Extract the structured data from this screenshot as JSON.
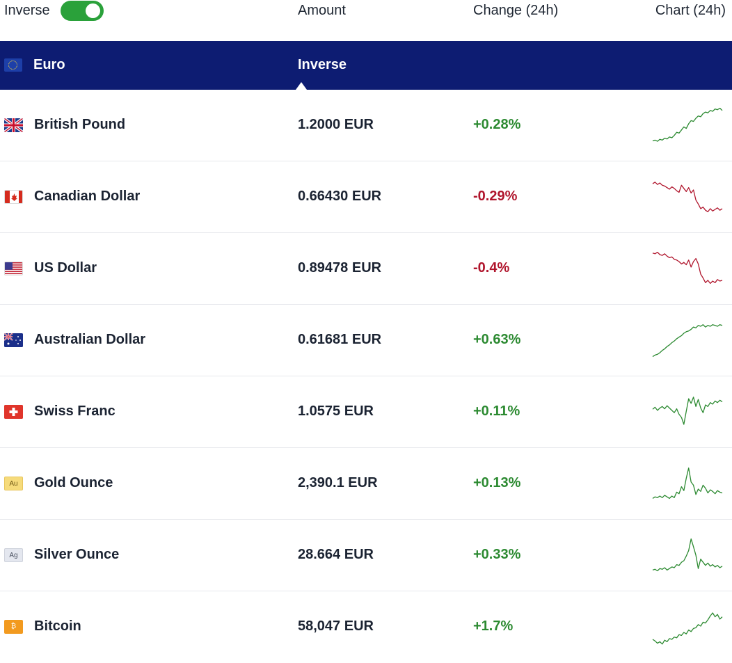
{
  "header": {
    "inverse_label": "Inverse",
    "toggle_on": true,
    "col_amount": "Amount",
    "col_change": "Change (24h)",
    "col_chart": "Chart (24h)"
  },
  "base": {
    "name": "Euro",
    "mode": "Inverse",
    "flag": "eu-flag-icon"
  },
  "colors": {
    "up": "#2c8a31",
    "down": "#b0152c",
    "banner": "#0d1c72",
    "toggle": "#2aa13a"
  },
  "rows": [
    {
      "name": "British Pound",
      "amount": "1.2000 EUR",
      "change": "+0.28%",
      "direction": "up",
      "flag": "gb-flag-icon",
      "flag_text": "",
      "spark": [
        0.08,
        0.1,
        0.07,
        0.12,
        0.1,
        0.15,
        0.13,
        0.18,
        0.16,
        0.22,
        0.3,
        0.28,
        0.36,
        0.44,
        0.4,
        0.52,
        0.6,
        0.58,
        0.66,
        0.72,
        0.7,
        0.78,
        0.82,
        0.8,
        0.86,
        0.84,
        0.9,
        0.88,
        0.92,
        0.86
      ]
    },
    {
      "name": "Canadian Dollar",
      "amount": "0.66430 EUR",
      "change": "-0.29%",
      "direction": "down",
      "flag": "ca-flag-icon",
      "flag_text": "",
      "spark": [
        0.82,
        0.86,
        0.8,
        0.84,
        0.78,
        0.76,
        0.72,
        0.68,
        0.74,
        0.7,
        0.64,
        0.6,
        0.78,
        0.7,
        0.62,
        0.72,
        0.58,
        0.66,
        0.4,
        0.3,
        0.18,
        0.22,
        0.14,
        0.1,
        0.18,
        0.12,
        0.16,
        0.2,
        0.14,
        0.18
      ]
    },
    {
      "name": "US Dollar",
      "amount": "0.89478 EUR",
      "change": "-0.4%",
      "direction": "down",
      "flag": "us-flag-icon",
      "flag_text": "",
      "spark": [
        0.88,
        0.86,
        0.9,
        0.84,
        0.82,
        0.86,
        0.8,
        0.76,
        0.78,
        0.72,
        0.7,
        0.66,
        0.6,
        0.64,
        0.58,
        0.7,
        0.52,
        0.66,
        0.74,
        0.6,
        0.34,
        0.24,
        0.12,
        0.18,
        0.1,
        0.16,
        0.12,
        0.2,
        0.16,
        0.18
      ]
    },
    {
      "name": "Australian Dollar",
      "amount": "0.61681 EUR",
      "change": "+0.63%",
      "direction": "up",
      "flag": "au-flag-icon",
      "flag_text": "",
      "spark": [
        0.06,
        0.1,
        0.12,
        0.16,
        0.22,
        0.26,
        0.32,
        0.36,
        0.42,
        0.46,
        0.52,
        0.56,
        0.6,
        0.66,
        0.7,
        0.72,
        0.76,
        0.82,
        0.8,
        0.86,
        0.84,
        0.88,
        0.82,
        0.86,
        0.84,
        0.88,
        0.86,
        0.84,
        0.88,
        0.86
      ]
    },
    {
      "name": "Swiss Franc",
      "amount": "1.0575 EUR",
      "change": "+0.11%",
      "direction": "up",
      "flag": "ch-flag-icon",
      "flag_text": "",
      "spark": [
        0.55,
        0.6,
        0.52,
        0.58,
        0.62,
        0.56,
        0.64,
        0.58,
        0.52,
        0.46,
        0.56,
        0.42,
        0.34,
        0.16,
        0.5,
        0.82,
        0.7,
        0.86,
        0.62,
        0.8,
        0.58,
        0.46,
        0.66,
        0.62,
        0.72,
        0.68,
        0.76,
        0.72,
        0.78,
        0.74
      ]
    },
    {
      "name": "Gold Ounce",
      "amount": "2,390.1 EUR",
      "change": "+0.13%",
      "direction": "up",
      "flag": "gold-metal-icon",
      "flag_text": "Au",
      "spark": [
        0.1,
        0.14,
        0.12,
        0.16,
        0.12,
        0.18,
        0.14,
        0.1,
        0.16,
        0.12,
        0.26,
        0.22,
        0.4,
        0.3,
        0.62,
        0.88,
        0.52,
        0.44,
        0.2,
        0.34,
        0.28,
        0.44,
        0.36,
        0.24,
        0.32,
        0.28,
        0.22,
        0.3,
        0.26,
        0.24
      ]
    },
    {
      "name": "Silver Ounce",
      "amount": "28.664 EUR",
      "change": "+0.33%",
      "direction": "up",
      "flag": "silver-metal-icon",
      "flag_text": "Ag",
      "spark": [
        0.1,
        0.12,
        0.08,
        0.14,
        0.12,
        0.16,
        0.1,
        0.14,
        0.18,
        0.16,
        0.24,
        0.22,
        0.3,
        0.34,
        0.46,
        0.6,
        0.9,
        0.7,
        0.48,
        0.14,
        0.38,
        0.3,
        0.22,
        0.28,
        0.2,
        0.24,
        0.18,
        0.22,
        0.16,
        0.2
      ]
    },
    {
      "name": "Bitcoin",
      "amount": "58,047 EUR",
      "change": "+1.7%",
      "direction": "up",
      "flag": "bitcoin-icon",
      "flag_text": "₿",
      "spark": [
        0.16,
        0.12,
        0.06,
        0.1,
        0.04,
        0.14,
        0.1,
        0.18,
        0.16,
        0.22,
        0.2,
        0.28,
        0.26,
        0.34,
        0.3,
        0.4,
        0.36,
        0.44,
        0.46,
        0.54,
        0.5,
        0.6,
        0.58,
        0.66,
        0.76,
        0.84,
        0.74,
        0.8,
        0.68,
        0.74
      ]
    }
  ]
}
